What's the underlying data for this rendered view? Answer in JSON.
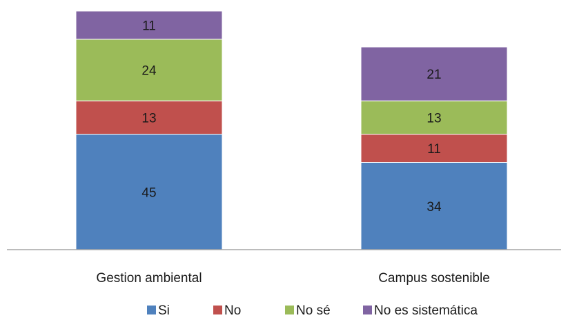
{
  "chart_data": {
    "type": "bar",
    "stacked": true,
    "categories": [
      "Gestion ambiental",
      "Campus sostenible"
    ],
    "series": [
      {
        "name": "Si",
        "values": [
          45,
          34
        ],
        "color": "#4f81bd"
      },
      {
        "name": "No",
        "values": [
          13,
          11
        ],
        "color": "#c0504d"
      },
      {
        "name": "No sé",
        "values": [
          24,
          13
        ],
        "color": "#9bbb59"
      },
      {
        "name": "No es sistemática",
        "values": [
          11,
          21
        ],
        "color": "#8064a2"
      }
    ],
    "title": "",
    "xlabel": "",
    "ylabel": "",
    "ylim": [
      0,
      93
    ],
    "grid": false,
    "legend_position": "bottom"
  },
  "colors": {
    "axis": "#a6a6a6",
    "text": "#1a1a1a",
    "separator": "#ffffff"
  }
}
